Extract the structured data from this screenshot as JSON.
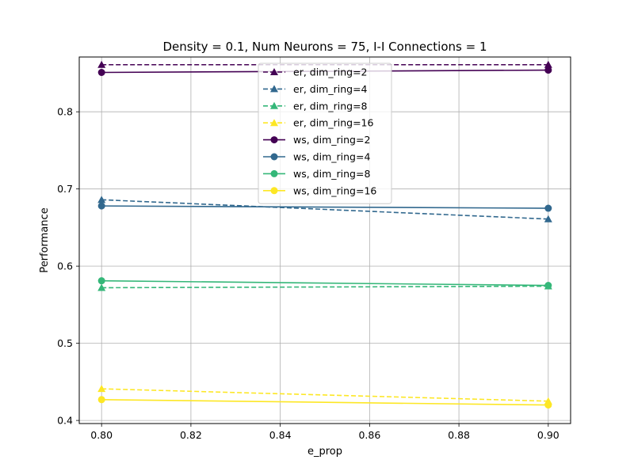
{
  "chart_data": {
    "type": "line",
    "title": "Density = 0.1, Num Neurons = 75, I-I Connections = 1",
    "xlabel": "e_prop",
    "ylabel": "Performance",
    "x": [
      0.8,
      0.9
    ],
    "xlim": [
      0.795,
      0.905
    ],
    "ylim": [
      0.396,
      0.871
    ],
    "xticks": [
      "0.80",
      "0.82",
      "0.84",
      "0.86",
      "0.88",
      "0.90"
    ],
    "yticks": [
      "0.4",
      "0.5",
      "0.6",
      "0.7",
      "0.8"
    ],
    "grid": true,
    "legend_position": "top-center",
    "series": [
      {
        "name": "er, dim_ring=2",
        "values": [
          0.861,
          0.861
        ],
        "color": "#440154",
        "dash": true,
        "marker": "triangle"
      },
      {
        "name": "er, dim_ring=4",
        "values": [
          0.686,
          0.661
        ],
        "color": "#31688e",
        "dash": true,
        "marker": "triangle"
      },
      {
        "name": "er, dim_ring=8",
        "values": [
          0.572,
          0.574
        ],
        "color": "#35b779",
        "dash": true,
        "marker": "triangle"
      },
      {
        "name": "er, dim_ring=16",
        "values": [
          0.441,
          0.425
        ],
        "color": "#fde725",
        "dash": true,
        "marker": "triangle"
      },
      {
        "name": "ws, dim_ring=2",
        "values": [
          0.851,
          0.854
        ],
        "color": "#440154",
        "dash": false,
        "marker": "circle"
      },
      {
        "name": "ws, dim_ring=4",
        "values": [
          0.678,
          0.675
        ],
        "color": "#31688e",
        "dash": false,
        "marker": "circle"
      },
      {
        "name": "ws, dim_ring=8",
        "values": [
          0.581,
          0.575
        ],
        "color": "#35b779",
        "dash": false,
        "marker": "circle"
      },
      {
        "name": "ws, dim_ring=16",
        "values": [
          0.427,
          0.42
        ],
        "color": "#fde725",
        "dash": false,
        "marker": "circle"
      }
    ]
  }
}
